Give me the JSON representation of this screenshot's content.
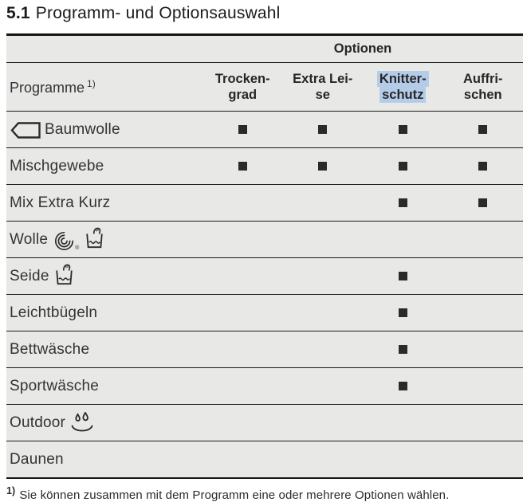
{
  "heading": {
    "number": "5.1",
    "title": "Programm- und Optionsauswahl"
  },
  "table": {
    "options_header": "Optionen",
    "programs_header": "Programme",
    "programs_header_sup": "1)",
    "highlight_color": "#b5cce9",
    "row_bg_color": "#e8e8e7",
    "mark_color": "#2b2a29",
    "columns": [
      {
        "line1": "Trocken-",
        "line2": "grad",
        "highlighted": false
      },
      {
        "line1": "Extra Lei-",
        "line2": "se",
        "highlighted": false
      },
      {
        "line1": "Knitter-",
        "line2": "schutz",
        "highlighted": true
      },
      {
        "line1": "Auffri-",
        "line2": "schen",
        "highlighted": false
      }
    ],
    "icon_meta": {
      "woolmark_registered": "®"
    },
    "rows": [
      {
        "name": "Baumwolle",
        "icons_before": [
          "cotton-program-icon"
        ],
        "icons_after": [],
        "marks": [
          true,
          true,
          true,
          true
        ]
      },
      {
        "name": "Mischgewebe",
        "icons_before": [],
        "icons_after": [],
        "marks": [
          true,
          true,
          true,
          true
        ]
      },
      {
        "name": "Mix Extra Kurz",
        "icons_before": [],
        "icons_after": [],
        "marks": [
          false,
          false,
          true,
          true
        ]
      },
      {
        "name": "Wolle",
        "icons_before": [],
        "icons_after": [
          "woolmark-icon",
          "handwash-icon"
        ],
        "marks": [
          false,
          false,
          false,
          false
        ]
      },
      {
        "name": "Seide",
        "icons_before": [],
        "icons_after": [
          "handwash-icon"
        ],
        "marks": [
          false,
          false,
          true,
          false
        ]
      },
      {
        "name": "Leichtbügeln",
        "icons_before": [],
        "icons_after": [],
        "marks": [
          false,
          false,
          true,
          false
        ]
      },
      {
        "name": "Bettwäsche",
        "icons_before": [],
        "icons_after": [],
        "marks": [
          false,
          false,
          true,
          false
        ]
      },
      {
        "name": "Sportwäsche",
        "icons_before": [],
        "icons_after": [],
        "marks": [
          false,
          false,
          true,
          false
        ]
      },
      {
        "name": "Outdoor",
        "icons_before": [],
        "icons_after": [
          "water-repellent-icon"
        ],
        "marks": [
          false,
          false,
          false,
          false
        ]
      },
      {
        "name": "Daunen",
        "icons_before": [],
        "icons_after": [],
        "marks": [
          false,
          false,
          false,
          false
        ]
      }
    ]
  },
  "footnote": {
    "marker": "1)",
    "text": "Sie können zusammen mit dem Programm eine oder mehrere Optionen wählen."
  }
}
